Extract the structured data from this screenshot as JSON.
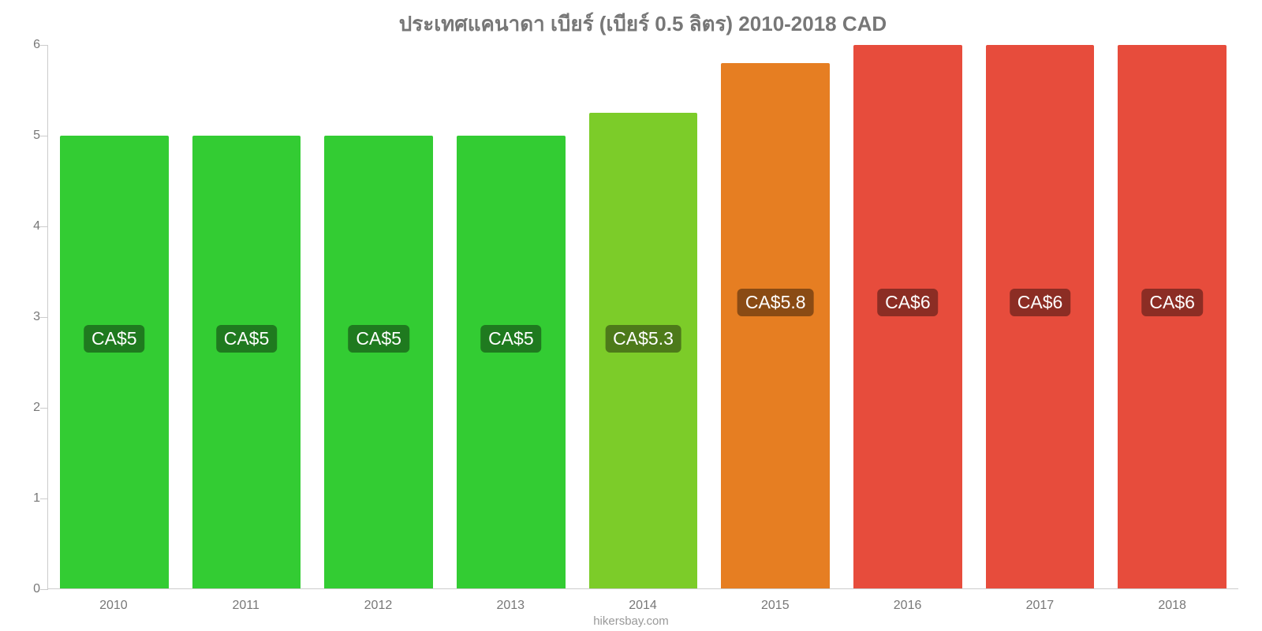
{
  "chart": {
    "type": "bar",
    "title": "ประเทศแคนาดา เบียร์ (เบียร์ 0.5 ลิตร) 2010-2018 CAD",
    "title_fontsize": 26,
    "title_color": "#777777",
    "background_color": "#ffffff",
    "axis_color": "#cccccc",
    "tick_label_color": "#777777",
    "tick_fontsize": 16,
    "ylim": [
      0,
      6
    ],
    "yticks": [
      0,
      1,
      2,
      3,
      4,
      5,
      6
    ],
    "categories": [
      "2010",
      "2011",
      "2012",
      "2013",
      "2014",
      "2015",
      "2016",
      "2017",
      "2018"
    ],
    "values": [
      5,
      5,
      5,
      5,
      5.25,
      5.8,
      6,
      6,
      6
    ],
    "value_labels": [
      "CA$5",
      "CA$5",
      "CA$5",
      "CA$5",
      "CA$5.3",
      "CA$5.8",
      "CA$6",
      "CA$6",
      "CA$6"
    ],
    "bar_colors": [
      "#33cc33",
      "#33cc33",
      "#33cc33",
      "#33cc33",
      "#7ccc29",
      "#e67e22",
      "#e74c3c",
      "#e74c3c",
      "#e74c3c"
    ],
    "label_bg_colors": [
      "#1f7a1f",
      "#1f7a1f",
      "#1f7a1f",
      "#1f7a1f",
      "#4d7a1a",
      "#8a4b14",
      "#8c2d24",
      "#8c2d24",
      "#8c2d24"
    ],
    "label_text_color": "#ffffff",
    "label_fontsize": 23,
    "label_y_value": 2.75,
    "label_y_value_alt": 3.15,
    "bar_width": 0.82
  },
  "footer": {
    "text": "hikersbay.com",
    "color": "#999999",
    "fontsize": 15
  }
}
